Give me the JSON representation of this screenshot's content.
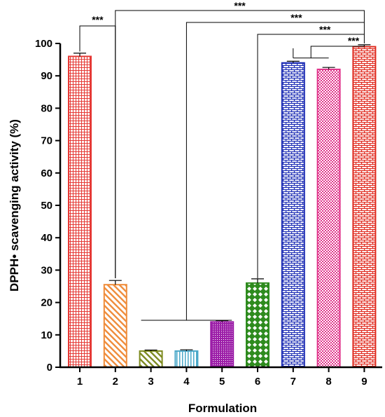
{
  "chart_data": {
    "type": "bar",
    "title": "",
    "xlabel": "Formulation",
    "ylabel": "DPPH• scavenging activity (%)",
    "ylim": [
      0,
      100
    ],
    "yticks": [
      0,
      10,
      20,
      30,
      40,
      50,
      60,
      70,
      80,
      90,
      100
    ],
    "grid": false,
    "categories": [
      "1",
      "2",
      "3",
      "4",
      "5",
      "6",
      "7",
      "8",
      "9"
    ],
    "values": [
      96,
      25.5,
      5,
      5,
      14,
      26,
      94,
      92,
      99
    ],
    "errors": [
      1,
      1.3,
      0.3,
      0.4,
      0.4,
      1.3,
      0.5,
      0.6,
      0.6
    ],
    "colors": [
      "#e53935",
      "#ef8c3a",
      "#7d8a1f",
      "#4aa8c8",
      "#9c1fa8",
      "#2e8b1e",
      "#1f2fb5",
      "#e0338a",
      "#e02b1f"
    ],
    "patterns": [
      "grid",
      "diag",
      "diag",
      "vert",
      "dots",
      "diamond",
      "brick",
      "checker",
      "brick"
    ],
    "significance": [
      {
        "from": "1",
        "to": "2",
        "label": "***"
      },
      {
        "from": "2",
        "to": "9",
        "label": "***"
      },
      {
        "from": "3-5",
        "to": "9",
        "label": "***"
      },
      {
        "from": "6",
        "to": "9",
        "label": "***"
      },
      {
        "from": "7-8",
        "to": "9",
        "label": "***"
      }
    ]
  }
}
